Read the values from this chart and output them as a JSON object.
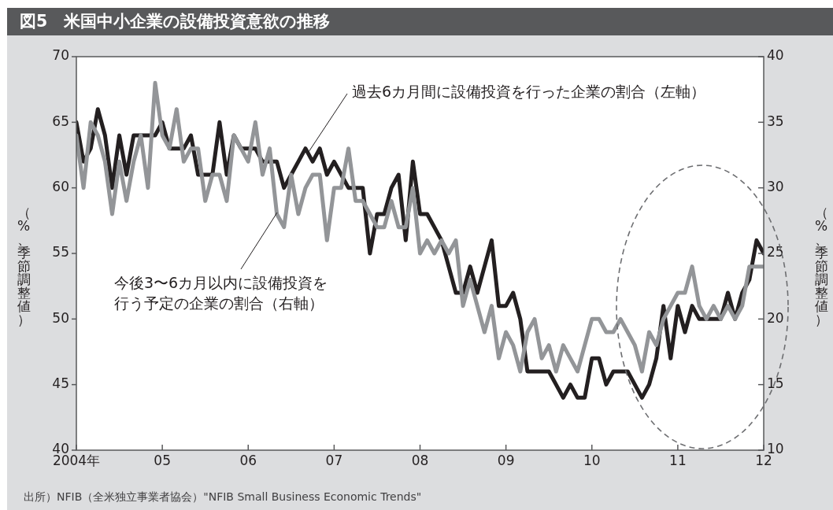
{
  "chart_data": {
    "type": "line",
    "title": "図5　米国中小企業の設備投資意欲の推移",
    "ylabel": "（%、季節調整値）",
    "y2label": "（%、季節調整値）",
    "annotations": [
      "出所）NFIB（全米独立事業者協会）\"NFIB Small Business Economic Trends\""
    ],
    "x": [
      "2004-01",
      "2004-02",
      "2004-03",
      "2004-04",
      "2004-05",
      "2004-06",
      "2004-07",
      "2004-08",
      "2004-09",
      "2004-10",
      "2004-11",
      "2004-12",
      "2005-01",
      "2005-02",
      "2005-03",
      "2005-04",
      "2005-05",
      "2005-06",
      "2005-07",
      "2005-08",
      "2005-09",
      "2005-10",
      "2005-11",
      "2005-12",
      "2006-01",
      "2006-02",
      "2006-03",
      "2006-04",
      "2006-05",
      "2006-06",
      "2006-07",
      "2006-08",
      "2006-09",
      "2006-10",
      "2006-11",
      "2006-12",
      "2007-01",
      "2007-02",
      "2007-03",
      "2007-04",
      "2007-05",
      "2007-06",
      "2007-07",
      "2007-08",
      "2007-09",
      "2007-10",
      "2007-11",
      "2007-12",
      "2008-01",
      "2008-02",
      "2008-03",
      "2008-04",
      "2008-05",
      "2008-06",
      "2008-07",
      "2008-08",
      "2008-09",
      "2008-10",
      "2008-11",
      "2008-12",
      "2009-01",
      "2009-02",
      "2009-03",
      "2009-04",
      "2009-05",
      "2009-06",
      "2009-07",
      "2009-08",
      "2009-09",
      "2009-10",
      "2009-11",
      "2009-12",
      "2010-01",
      "2010-02",
      "2010-03",
      "2010-04",
      "2010-05",
      "2010-06",
      "2010-07",
      "2010-08",
      "2010-09",
      "2010-10",
      "2010-11",
      "2010-12",
      "2011-01",
      "2011-02",
      "2011-03",
      "2011-04",
      "2011-05",
      "2011-06",
      "2011-07",
      "2011-08",
      "2011-09",
      "2011-10",
      "2011-11",
      "2011-12",
      "2012-01"
    ],
    "series": [
      {
        "name": "過去6カ月間に設備投資を行った企業の割合（左軸）",
        "color": "#231f20",
        "values": [
          65,
          62,
          63,
          66,
          64,
          60,
          64,
          61,
          64,
          64,
          64,
          64,
          65,
          63,
          63,
          63,
          64,
          61,
          61,
          61,
          65,
          61,
          64,
          63,
          63,
          63,
          62,
          62,
          62,
          60,
          61,
          62,
          63,
          62,
          63,
          61,
          62,
          61,
          60,
          60,
          60,
          55,
          58,
          58,
          60,
          61,
          56,
          62,
          58,
          58,
          57,
          56,
          54,
          52,
          52,
          54,
          52,
          54,
          56,
          51,
          51,
          52,
          50,
          46,
          46,
          46,
          46,
          45,
          44,
          45,
          44,
          44,
          47,
          47,
          45,
          46,
          46,
          46,
          45,
          44,
          45,
          47,
          51,
          47,
          51,
          49,
          51,
          50,
          50,
          50,
          50,
          52,
          50,
          52,
          53,
          56,
          55
        ]
      },
      {
        "name": "今後3〜6カ月以内に設備投資を行う予定の企業の割合（右軸）",
        "color": "#939598",
        "axis": "y2",
        "values": [
          34,
          30,
          35,
          34,
          32,
          28,
          32,
          29,
          32,
          34,
          30,
          38,
          34,
          33,
          36,
          32,
          33,
          33,
          29,
          31,
          31,
          29,
          34,
          33,
          32,
          35,
          31,
          33,
          28,
          27,
          31,
          28,
          30,
          31,
          31,
          26,
          30,
          30,
          33,
          29,
          29,
          28,
          27,
          27,
          29,
          27,
          27,
          30,
          25,
          26,
          25,
          26,
          25,
          26,
          21,
          23,
          21,
          19,
          21,
          17,
          19,
          18,
          16,
          19,
          20,
          17,
          18,
          16,
          18,
          17,
          16,
          18,
          20,
          20,
          19,
          19,
          20,
          19,
          18,
          16,
          19,
          18,
          20,
          21,
          22,
          22,
          24,
          21,
          20,
          21,
          20,
          21,
          20,
          21,
          24,
          24,
          24
        ]
      }
    ],
    "xlim": [
      "2004-01",
      "2012-01"
    ],
    "xticks": [
      {
        "value": "2004",
        "label": "2004年"
      },
      {
        "value": "2005",
        "label": "05"
      },
      {
        "value": "2006",
        "label": "06"
      },
      {
        "value": "2007",
        "label": "07"
      },
      {
        "value": "2008",
        "label": "08"
      },
      {
        "value": "2009",
        "label": "09"
      },
      {
        "value": "2010",
        "label": "10"
      },
      {
        "value": "2011",
        "label": "11"
      },
      {
        "value": "2012",
        "label": "12"
      }
    ],
    "ylim": [
      40,
      70
    ],
    "yticks": [
      40,
      45,
      50,
      55,
      60,
      65,
      70
    ],
    "y2lim": [
      10,
      40
    ],
    "y2ticks": [
      10,
      15,
      20,
      25,
      30,
      35,
      40
    ],
    "marker": "none",
    "line_style": "solid"
  }
}
